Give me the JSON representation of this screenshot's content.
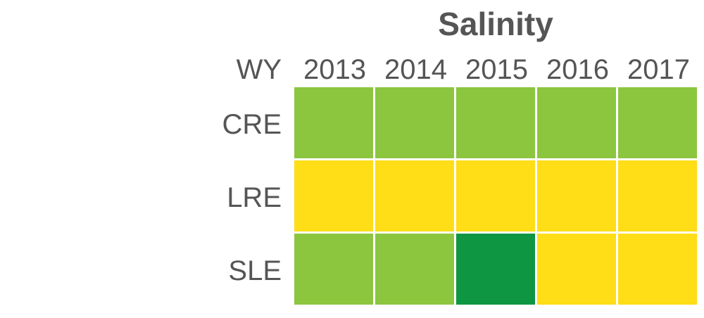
{
  "chart_data": {
    "type": "heatmap",
    "title": "Salinity",
    "corner_label": "WY",
    "columns": [
      "2013",
      "2014",
      "2015",
      "2016",
      "2017"
    ],
    "rows": [
      "CRE",
      "LRE",
      "SLE"
    ],
    "cells": [
      [
        "light-green",
        "light-green",
        "light-green",
        "light-green",
        "light-green"
      ],
      [
        "yellow",
        "yellow",
        "yellow",
        "yellow",
        "yellow"
      ],
      [
        "light-green",
        "light-green",
        "dark-green",
        "yellow",
        "yellow"
      ]
    ],
    "colors": {
      "light-green": "#8CC63F",
      "yellow": "#FFDD17",
      "dark-green": "#0E9643"
    },
    "grid_line_color": "#ffffff"
  }
}
